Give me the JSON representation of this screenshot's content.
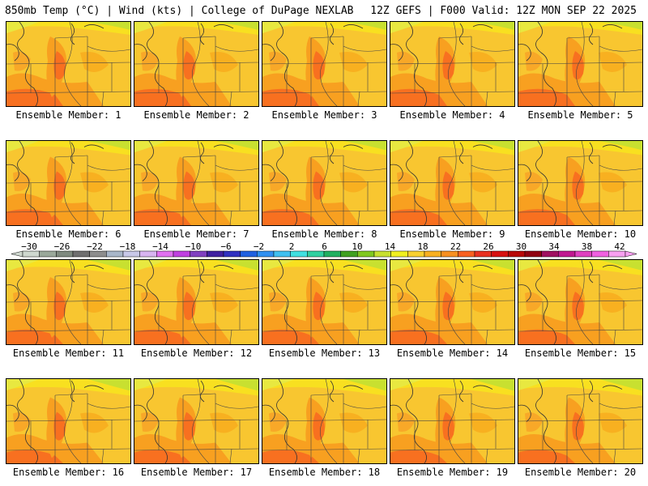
{
  "header": {
    "left": "850mb Temp (°C) | Wind (kts) | College of DuPage NEXLAB",
    "right": "12Z GEFS | F000 Valid: 12Z MON SEP 22 2025"
  },
  "panels": [
    {
      "label": "Ensemble Member: 1"
    },
    {
      "label": "Ensemble Member: 2"
    },
    {
      "label": "Ensemble Member: 3"
    },
    {
      "label": "Ensemble Member: 4"
    },
    {
      "label": "Ensemble Member: 5"
    },
    {
      "label": "Ensemble Member: 6"
    },
    {
      "label": "Ensemble Member: 7"
    },
    {
      "label": "Ensemble Member: 8"
    },
    {
      "label": "Ensemble Member: 9"
    },
    {
      "label": "Ensemble Member: 10"
    },
    {
      "label": "Ensemble Member: 11"
    },
    {
      "label": "Ensemble Member: 12"
    },
    {
      "label": "Ensemble Member: 13"
    },
    {
      "label": "Ensemble Member: 14"
    },
    {
      "label": "Ensemble Member: 15"
    },
    {
      "label": "Ensemble Member: 16"
    },
    {
      "label": "Ensemble Member: 17"
    },
    {
      "label": "Ensemble Member: 18"
    },
    {
      "label": "Ensemble Member: 19"
    },
    {
      "label": "Ensemble Member: 20"
    }
  ],
  "colorbar": {
    "labels": [
      "-30",
      "-26",
      "-22",
      "-18",
      "-14",
      "-10",
      "-6",
      "-2",
      "2",
      "6",
      "10",
      "14",
      "18",
      "22",
      "26",
      "30",
      "34",
      "38",
      "42"
    ],
    "colors": [
      "#cfd8cf",
      "#9aa89a",
      "#7f8a7f",
      "#6f6f6f",
      "#8d8d8d",
      "#a9b7c9",
      "#c8c8e8",
      "#d8b4f0",
      "#e070f0",
      "#c040e0",
      "#8040c0",
      "#4020a0",
      "#3030c0",
      "#2060e0",
      "#3090f0",
      "#40c0f0",
      "#40e0e0",
      "#30d0a0",
      "#20b060",
      "#40a020",
      "#80c820",
      "#c8e030",
      "#f0f020",
      "#f8d030",
      "#f8b020",
      "#f89020",
      "#f86020",
      "#e83020",
      "#d81010",
      "#b80808",
      "#900010",
      "#a01060",
      "#c01890",
      "#e040c0",
      "#f060e0",
      "#f8a0f0"
    ]
  }
}
